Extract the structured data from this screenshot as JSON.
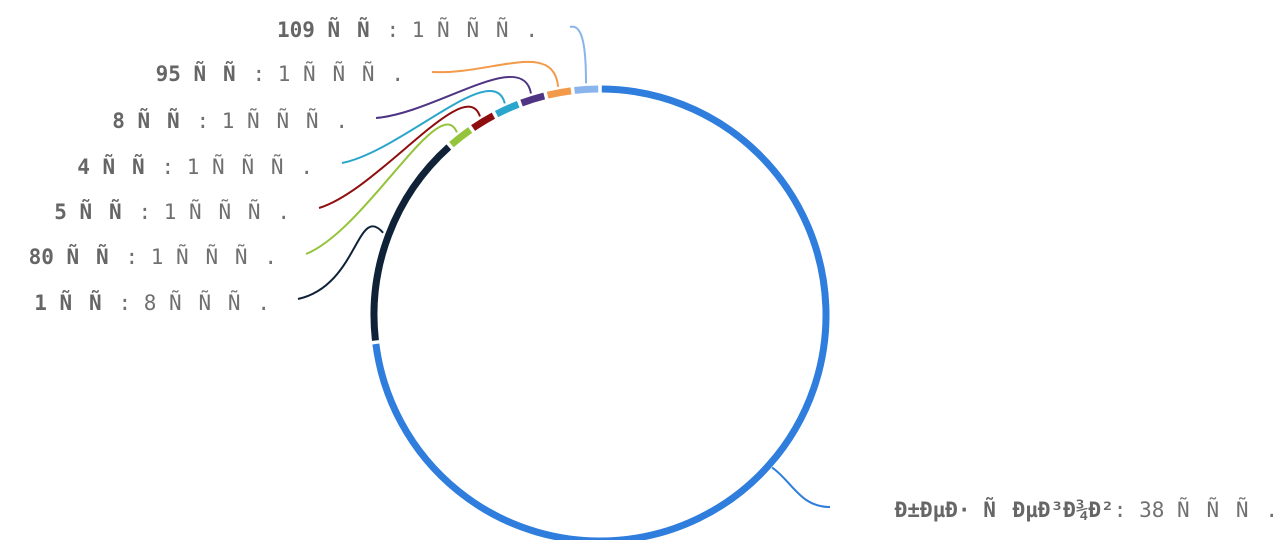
{
  "chart_data": {
    "type": "pie",
    "style": "ring",
    "categories": [
      "109 ÑÑ",
      "95 ÑÑ",
      "8 ÑÑ",
      "4 ÑÑ",
      "5 ÑÑ",
      "80 ÑÑ",
      "1 ÑÑ",
      "Ð±ÐµÐ· ÑÐµÐ³Ð¾Ð²"
    ],
    "values": [
      1,
      1,
      1,
      1,
      1,
      1,
      8,
      38
    ],
    "value_texts": [
      "1 ÑÑÑ.",
      "1 ÑÑÑ.",
      "1 ÑÑÑ.",
      "1 ÑÑÑ.",
      "1 ÑÑÑ.",
      "1 ÑÑÑ.",
      "8 ÑÑÑ.",
      "38 ÑÑÑ."
    ],
    "colors": [
      "#8ab4ec",
      "#f29a4a",
      "#4e3483",
      "#2aa6cc",
      "#8e0e10",
      "#94c43b",
      "#0f2238",
      "#2f7ddc"
    ],
    "label_separator": ": ",
    "legend": "none"
  }
}
